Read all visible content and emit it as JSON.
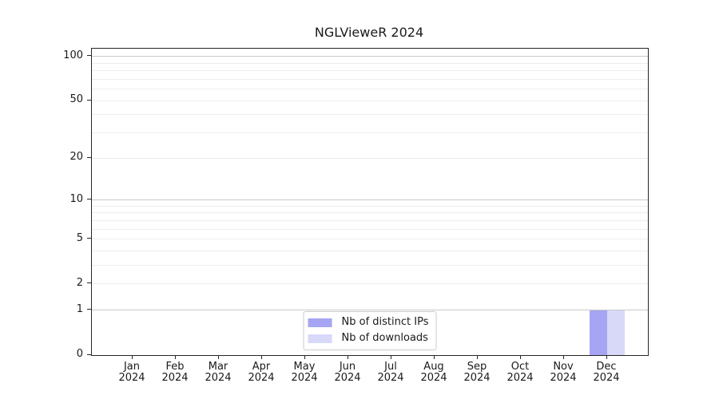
{
  "chart_data": {
    "type": "bar",
    "title": "NGLVieweR 2024",
    "xlabel": "",
    "ylabel": "",
    "year_label": "2024",
    "categories": [
      "Jan",
      "Feb",
      "Mar",
      "Apr",
      "May",
      "Jun",
      "Jul",
      "Aug",
      "Sep",
      "Oct",
      "Nov",
      "Dec"
    ],
    "series": [
      {
        "name": "Nb of distinct IPs",
        "color": "#a5a5f3",
        "values": [
          0,
          0,
          0,
          0,
          0,
          0,
          0,
          0,
          0,
          0,
          0,
          1
        ]
      },
      {
        "name": "Nb of downloads",
        "color": "#d8d8f8",
        "values": [
          0,
          0,
          0,
          0,
          0,
          0,
          0,
          0,
          0,
          0,
          0,
          1
        ]
      }
    ],
    "y_axis": {
      "scale": "log1p",
      "ylim": [
        0,
        113
      ],
      "tick_labels": [
        100,
        50,
        20,
        10,
        5,
        2,
        1,
        0
      ],
      "major_gridlines": [
        1,
        10,
        100
      ],
      "minor_gridlines": [
        2,
        3,
        4,
        5,
        6,
        7,
        8,
        9,
        20,
        30,
        40,
        50,
        60,
        70,
        80,
        90
      ],
      "grid_major_color": "#c9c9c9",
      "grid_minor_color": "#ededed"
    },
    "legend": {
      "position": "lower-center-inside",
      "entries": [
        "Nb of distinct IPs",
        "Nb of downloads"
      ]
    },
    "grid": true
  }
}
